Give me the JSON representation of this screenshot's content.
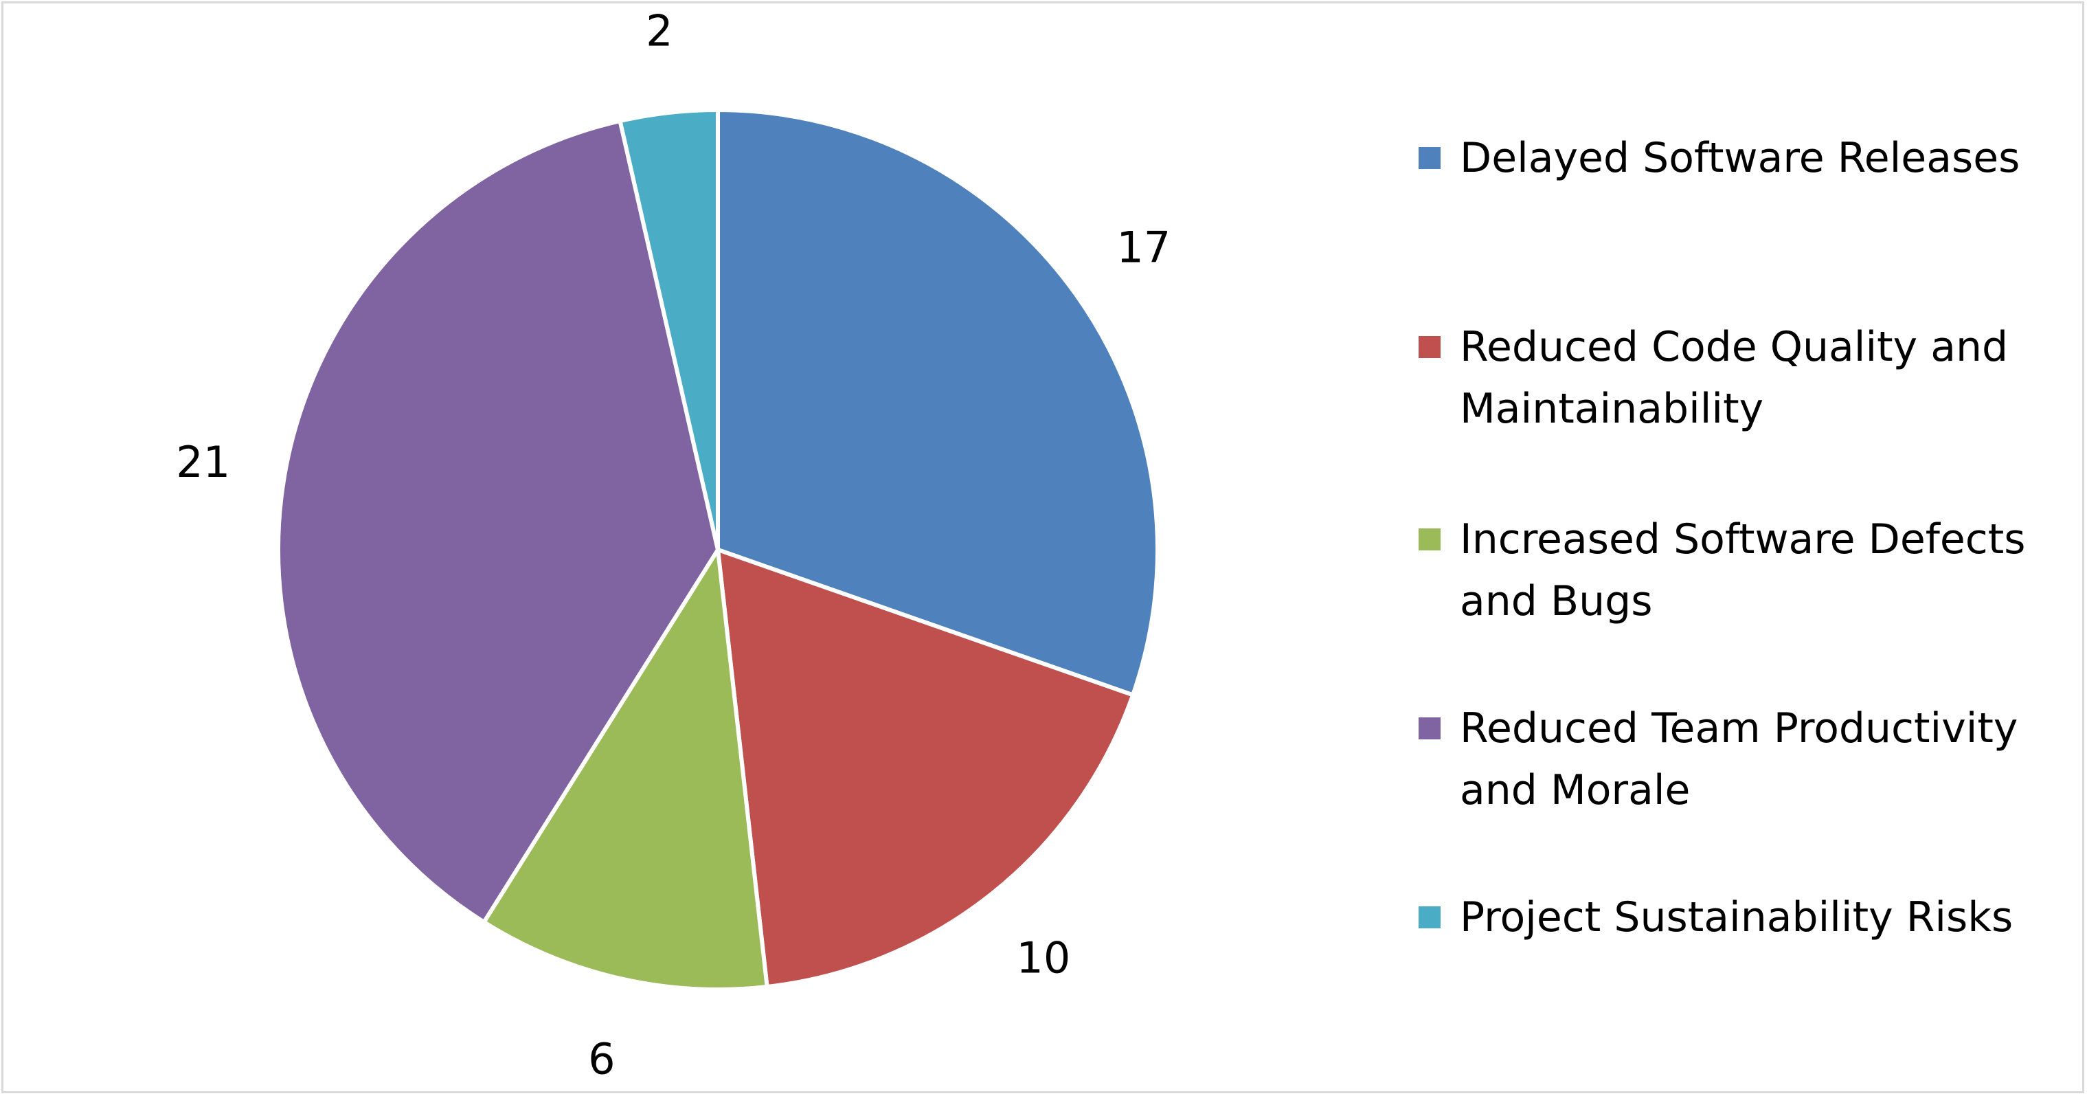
{
  "chart_data": {
    "type": "pie",
    "title": "",
    "categories": [
      "Delayed Software Releases",
      "Reduced Code Quality and Maintainability",
      "Increased Software Defects and Bugs",
      "Reduced Team Productivity and Morale",
      "Project Sustainability Risks"
    ],
    "values": [
      17,
      10,
      6,
      21,
      2
    ],
    "colors": [
      "#4f81bd",
      "#c0504d",
      "#9bbb59",
      "#8064a2",
      "#4bacc6"
    ],
    "legend_position": "right",
    "data_labels": "outside-end"
  }
}
